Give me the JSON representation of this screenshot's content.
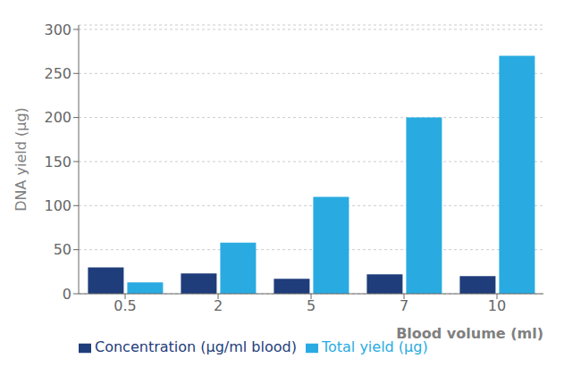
{
  "chart_data": {
    "type": "bar",
    "categories": [
      "0.5",
      "2",
      "5",
      "7",
      "10"
    ],
    "series": [
      {
        "name": "Concentration (µg/ml blood)",
        "color": "#1f3d7a",
        "values": [
          30,
          23,
          17,
          22,
          20
        ]
      },
      {
        "name": "Total yield (µg)",
        "color": "#29abe2",
        "values": [
          13,
          58,
          110,
          200,
          270
        ]
      }
    ],
    "ylabel": "DNA yield (µg)",
    "xlabel": "Blood volume (ml)",
    "ylim": [
      0,
      305
    ],
    "yticks": [
      0,
      50,
      100,
      150,
      200,
      250,
      300
    ],
    "grid": true,
    "legend": "bottom-left"
  }
}
